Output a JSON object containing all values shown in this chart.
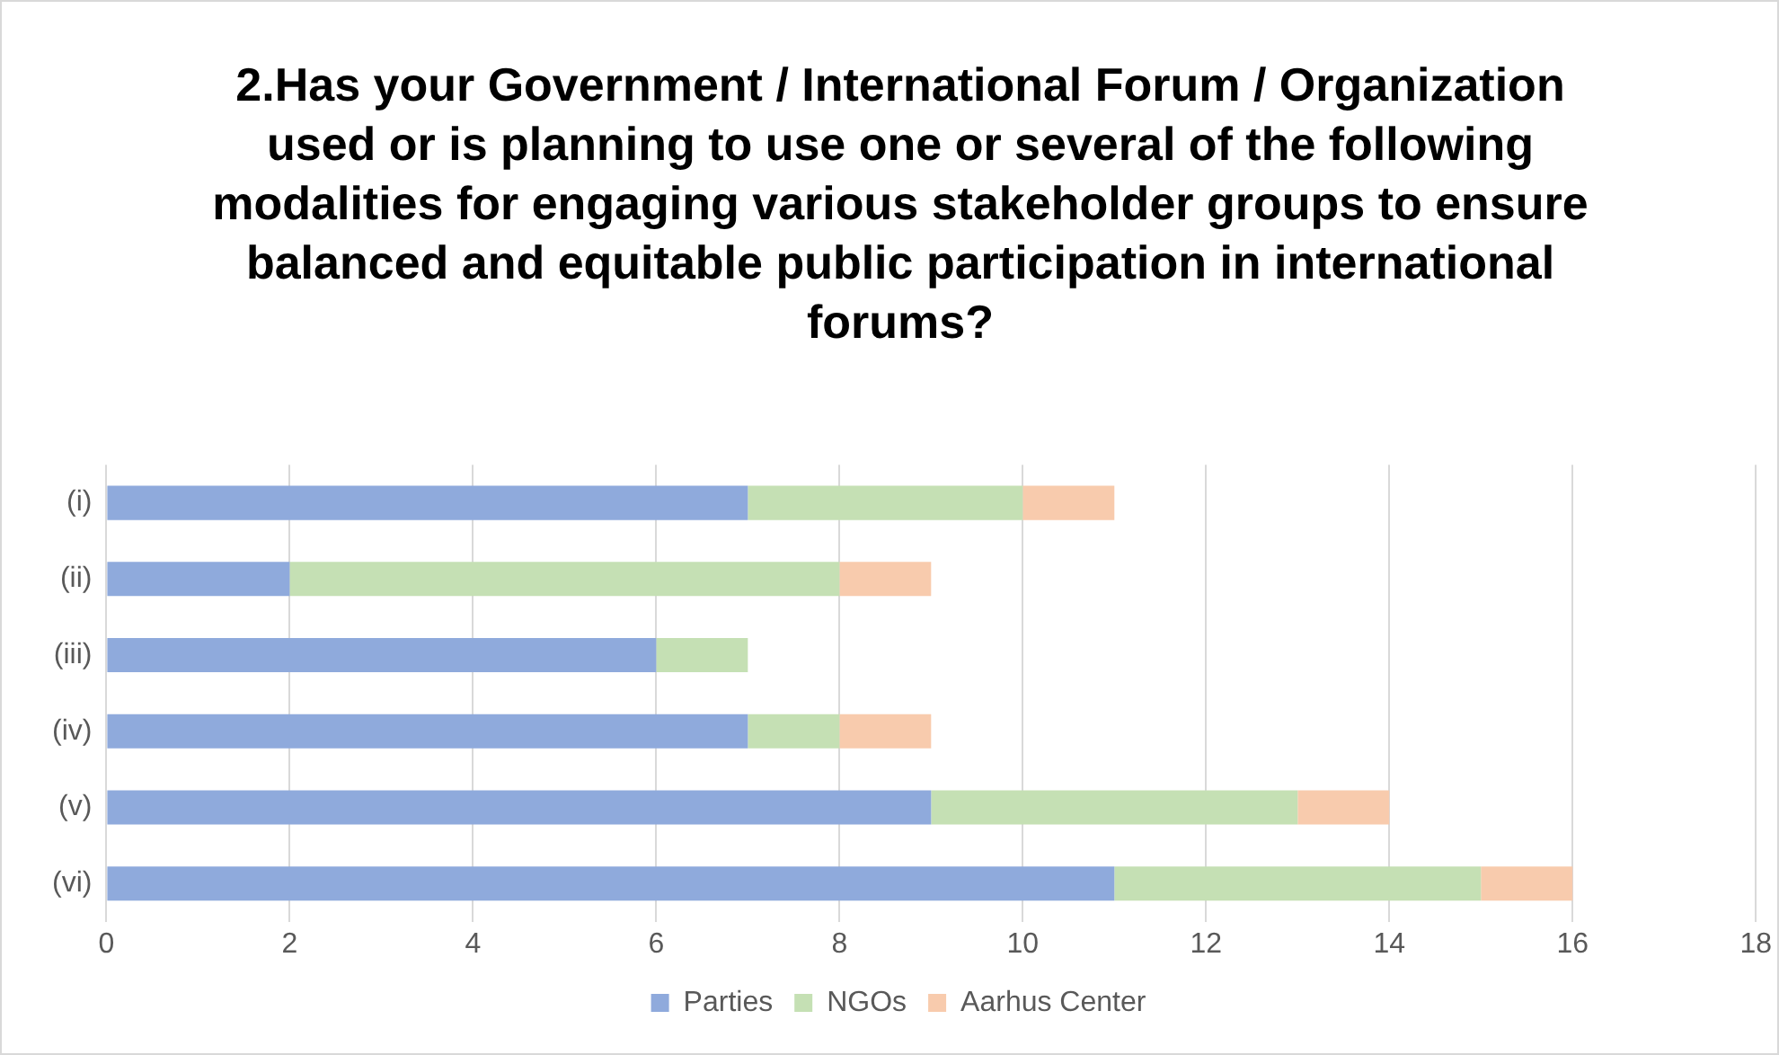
{
  "chart_data": {
    "type": "bar",
    "orientation": "horizontal",
    "stacked": true,
    "title": "2.Has your Government / International Forum / Organization used or is planning to use one or several of the following modalities for engaging various stakeholder groups to ensure balanced and equitable public participation in international forums?",
    "categories": [
      "(i)",
      "(ii)",
      "(iii)",
      "(iv)",
      "(v)",
      "(vi)"
    ],
    "series": [
      {
        "name": "Parties",
        "color": "#8faadc",
        "values": [
          7,
          2,
          6,
          7,
          9,
          11
        ]
      },
      {
        "name": "NGOs",
        "color": "#c5e0b4",
        "values": [
          3,
          6,
          1,
          1,
          4,
          4
        ]
      },
      {
        "name": "Aarhus Center",
        "color": "#f8cbad",
        "values": [
          1,
          1,
          0,
          1,
          1,
          1
        ]
      }
    ],
    "xlim": [
      0,
      18
    ],
    "xticks": [
      0,
      2,
      4,
      6,
      8,
      10,
      12,
      14,
      16,
      18
    ],
    "grid": "x",
    "legend": "bottom"
  }
}
